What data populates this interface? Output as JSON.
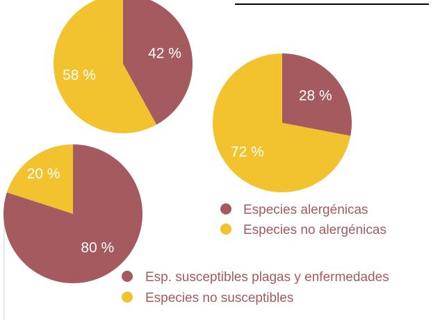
{
  "colors": {
    "primary": "#a55a5f",
    "secondary": "#f3c22f",
    "legend_text": "#a55a5f",
    "divider": "#000000",
    "edge_line": "#cfcfcf"
  },
  "chart_data": [
    {
      "type": "pie",
      "slices": [
        {
          "value": 42,
          "label": "42 %"
        },
        {
          "value": 58,
          "label": "58 %"
        }
      ]
    },
    {
      "type": "pie",
      "slices": [
        {
          "value": 28,
          "label": "28 %",
          "legend": "Especies alergénicas"
        },
        {
          "value": 72,
          "label": "72 %",
          "legend": "Especies no alergénicas"
        }
      ]
    },
    {
      "type": "pie",
      "slices": [
        {
          "value": 80,
          "label": "80 %",
          "legend": "Esp. susceptibles plagas y enfermedades"
        },
        {
          "value": 20,
          "label": "20 %",
          "legend": "Especies no susceptibles"
        }
      ]
    }
  ]
}
